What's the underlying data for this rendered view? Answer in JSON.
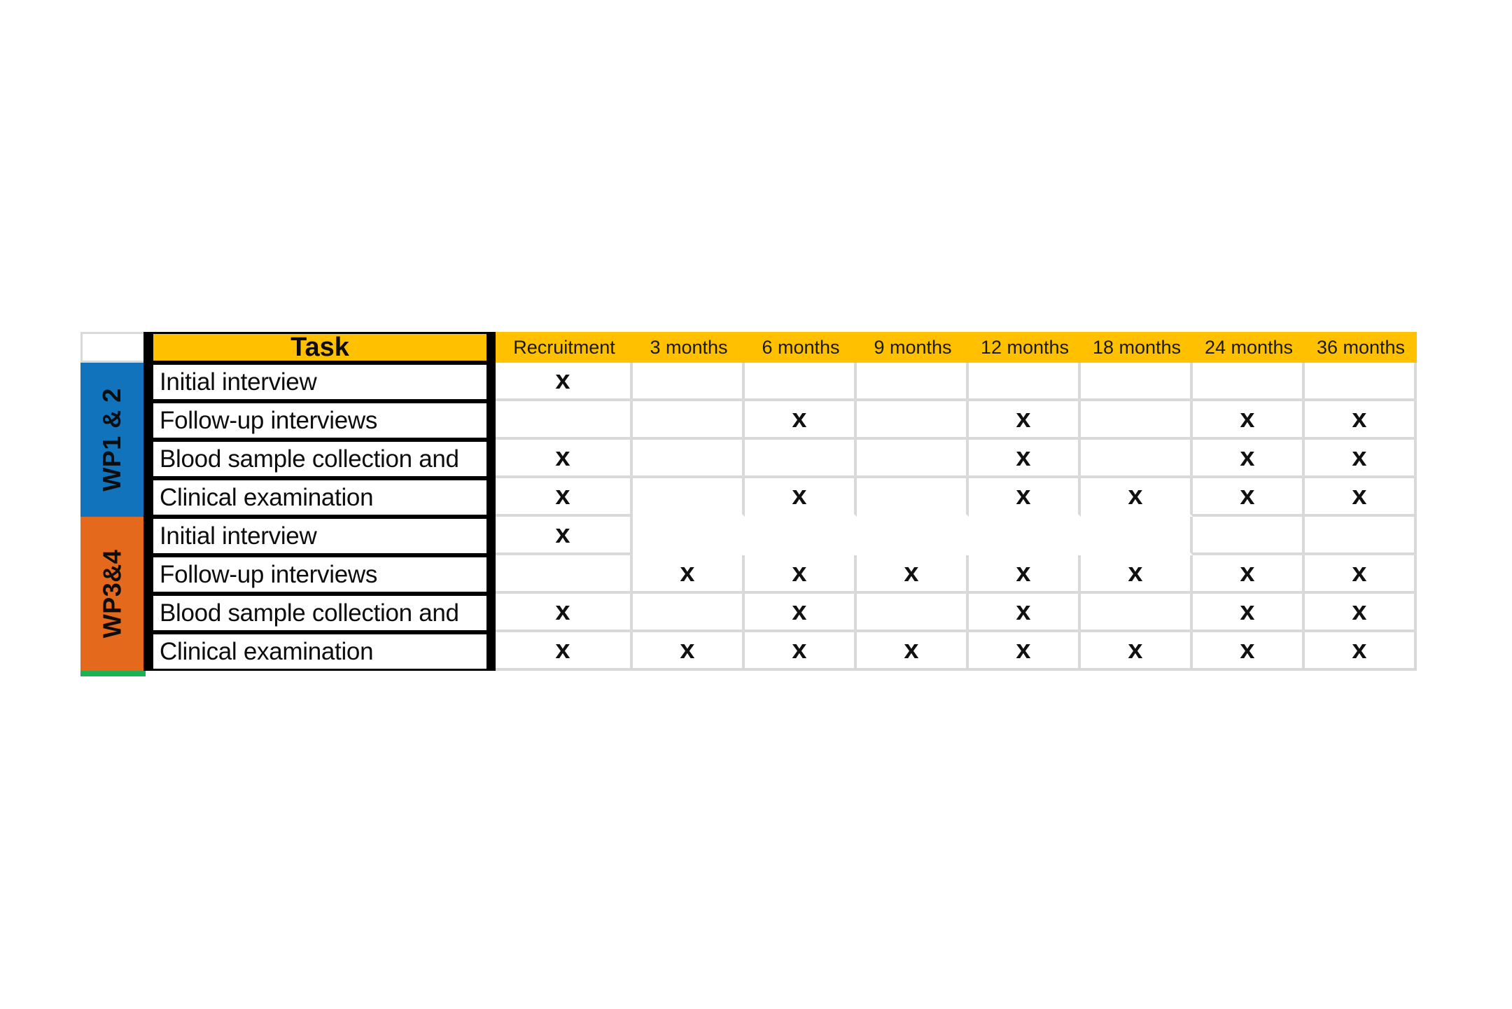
{
  "table": {
    "task_header": "Task",
    "time_columns": [
      "Recruitment",
      "3 months",
      "6 months",
      "9 months",
      "12 months",
      "18 months",
      "24 months",
      "36 months"
    ],
    "work_packages": [
      {
        "label": "WP1 & 2",
        "color": "#1273bd"
      },
      {
        "label": "WP3&4",
        "color": "#e4691c"
      }
    ],
    "rows": [
      {
        "group": 0,
        "task": "Initial interview",
        "marks": [
          1,
          0,
          0,
          0,
          0,
          0,
          0,
          0
        ]
      },
      {
        "group": 0,
        "task": "Follow-up interviews",
        "marks": [
          0,
          0,
          1,
          0,
          1,
          0,
          1,
          1
        ]
      },
      {
        "group": 0,
        "task": "Blood sample collection and",
        "marks": [
          1,
          0,
          0,
          0,
          1,
          0,
          1,
          1
        ]
      },
      {
        "group": 0,
        "task": "Clinical examination",
        "marks": [
          1,
          0,
          1,
          0,
          1,
          1,
          1,
          1
        ]
      },
      {
        "group": 1,
        "task": "Initial interview",
        "marks": [
          1,
          0,
          0,
          0,
          0,
          0,
          0,
          0
        ]
      },
      {
        "group": 1,
        "task": "Follow-up interviews",
        "marks": [
          0,
          1,
          1,
          1,
          1,
          1,
          1,
          1
        ]
      },
      {
        "group": 1,
        "task": "Blood sample collection and",
        "marks": [
          1,
          0,
          1,
          0,
          1,
          0,
          1,
          1
        ]
      },
      {
        "group": 1,
        "task": "Clinical examination",
        "marks": [
          1,
          1,
          1,
          1,
          1,
          1,
          1,
          1
        ]
      }
    ],
    "mark_char": "x",
    "colors": {
      "header_bg": "#ffc000",
      "wp12_blue": "#1273bd",
      "wp34_orange": "#e4691c",
      "accent_green": "#1cb254",
      "grid_gray": "#d9d9d9",
      "border_black": "#000000"
    }
  }
}
